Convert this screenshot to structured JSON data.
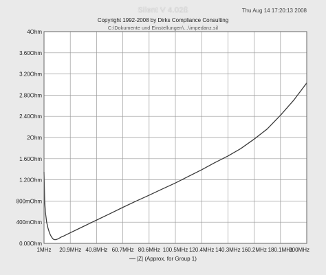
{
  "header": {
    "app_title": "Silent V 4.02ß",
    "timestamp": "Thu Aug 14 17:20:13 2008",
    "copyright": "Copyright 1992-2008 by Dirks Compliance Consulting",
    "file_path": "C:\\Dokumente und Einstellungen\\...\\impedanz.sil"
  },
  "legend": {
    "label": "|Z|  (Approx. for Group 1)",
    "placement": "bottom-center"
  },
  "colors": {
    "plot_background": "#ffffff",
    "grid": "#9a9a9a",
    "curve": "#3a3a3a",
    "frame": "#eaeaea"
  },
  "chart_data": {
    "type": "line",
    "title": "",
    "xlabel": "",
    "ylabel": "",
    "xlim": [
      1,
      200
    ],
    "ylim": [
      0,
      4
    ],
    "grid": true,
    "x_tick_labels": [
      "1MHz",
      "20.9MHz",
      "40.8MHz",
      "60.7MHz",
      "80.6MHz",
      "100.5MHz",
      "120.4MHz",
      "140.3MHz",
      "160.2MHz",
      "180.1MHz",
      "200MHz"
    ],
    "y_tick_labels": [
      "0.00Ohm",
      "400mOhm",
      "800mOhm",
      "1.20Ohm",
      "1.60Ohm",
      "2Ohm",
      "2.40Ohm",
      "2.80Ohm",
      "3.20Ohm",
      "3.60Ohm",
      "4Ohm"
    ],
    "series": [
      {
        "name": "|Z|  (Approx. for Group 1)",
        "x": [
          1,
          1.5,
          2,
          3,
          4,
          5,
          6,
          7,
          8,
          9,
          10,
          11,
          12,
          14,
          16,
          20.9,
          30,
          40.8,
          50,
          60.7,
          70,
          80.6,
          90,
          100.5,
          110,
          120.4,
          130,
          140.3,
          150,
          160.2,
          170,
          180.1,
          190,
          200
        ],
        "y": [
          1.35,
          0.8,
          0.6,
          0.4,
          0.29,
          0.21,
          0.15,
          0.11,
          0.08,
          0.07,
          0.07,
          0.08,
          0.09,
          0.12,
          0.14,
          0.2,
          0.31,
          0.44,
          0.55,
          0.68,
          0.79,
          0.91,
          1.02,
          1.14,
          1.26,
          1.39,
          1.52,
          1.65,
          1.79,
          1.97,
          2.16,
          2.42,
          2.7,
          3.03
        ]
      }
    ]
  }
}
